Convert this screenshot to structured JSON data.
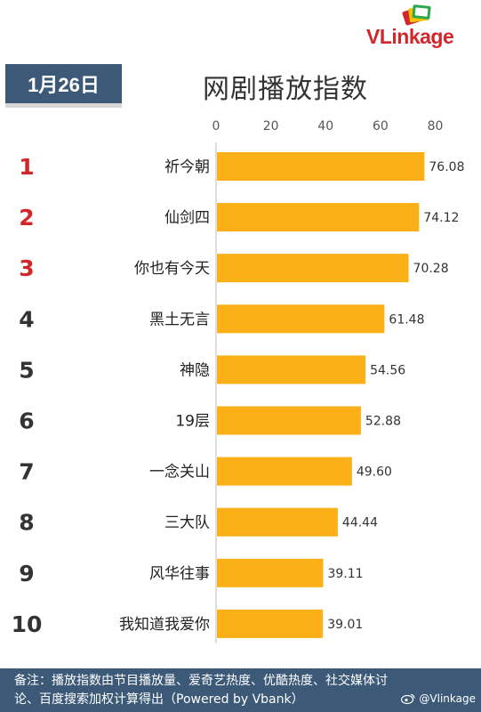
{
  "brand": {
    "name": "VLinkage"
  },
  "date_label": "1月26日",
  "chart_data": {
    "type": "bar",
    "orientation": "horizontal",
    "title": "网剧播放指数",
    "ranks": [
      "1",
      "2",
      "3",
      "4",
      "5",
      "6",
      "7",
      "8",
      "9",
      "10"
    ],
    "categories": [
      "祈今朝",
      "仙剑四",
      "你也有今天",
      "黑土无言",
      "神隐",
      "19层",
      "一念关山",
      "三大队",
      "风华往事",
      "我知道我爱你"
    ],
    "values": [
      76.08,
      74.12,
      70.28,
      61.48,
      54.56,
      52.88,
      49.6,
      44.44,
      39.11,
      39.01
    ],
    "value_labels": [
      "76.08",
      "74.12",
      "70.28",
      "61.48",
      "54.56",
      "52.88",
      "49.60",
      "44.44",
      "39.11",
      "39.01"
    ],
    "xlim": [
      0,
      80
    ],
    "ticks": [
      0,
      20,
      40,
      60,
      80
    ],
    "bar_color": "#fbb017",
    "top_rank_color": "#d3262b",
    "rank_color": "#333333",
    "grid": false
  },
  "footer": {
    "line1": "备注：播放指数由节目播放量、爱奇艺热度、优酷热度、社交媒体讨",
    "line2": "论、百度搜索加权计算得出（Powered by Vbank）",
    "weibo_handle": "@Vlinkage"
  },
  "colors": {
    "header_bg": "#3c5a78",
    "brand_red": "#d3262b"
  }
}
